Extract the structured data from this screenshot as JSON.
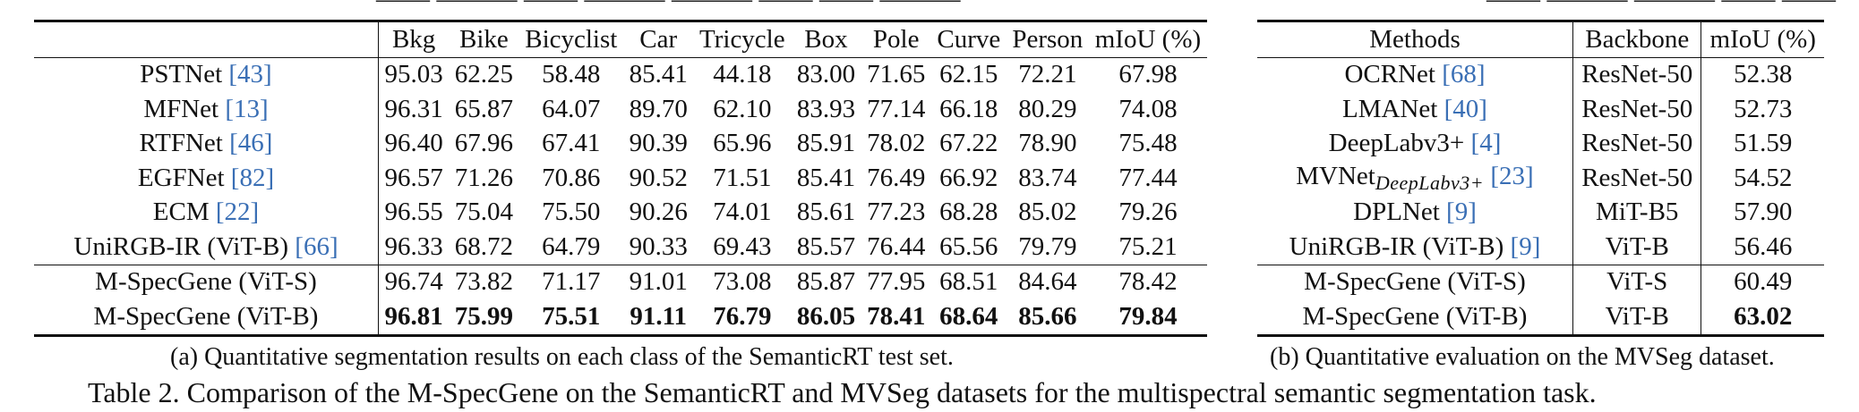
{
  "table_a": {
    "headers": [
      "",
      "Bkg",
      "Bike",
      "Bicyclist",
      "Car",
      "Tricycle",
      "Box",
      "Pole",
      "Curve",
      "Person",
      "mIoU (%)"
    ],
    "rows": [
      {
        "name": "PSTNet",
        "cite": "[43]",
        "vals": [
          "95.03",
          "62.25",
          "58.48",
          "85.41",
          "44.18",
          "83.00",
          "71.65",
          "62.15",
          "72.21",
          "67.98"
        ]
      },
      {
        "name": "MFNet",
        "cite": "[13]",
        "vals": [
          "96.31",
          "65.87",
          "64.07",
          "89.70",
          "62.10",
          "83.93",
          "77.14",
          "66.18",
          "80.29",
          "74.08"
        ]
      },
      {
        "name": "RTFNet",
        "cite": "[46]",
        "vals": [
          "96.40",
          "67.96",
          "67.41",
          "90.39",
          "65.96",
          "85.91",
          "78.02",
          "67.22",
          "78.90",
          "75.48"
        ]
      },
      {
        "name": "EGFNet",
        "cite": "[82]",
        "vals": [
          "96.57",
          "71.26",
          "70.86",
          "90.52",
          "71.51",
          "85.41",
          "76.49",
          "66.92",
          "83.74",
          "77.44"
        ]
      },
      {
        "name": "ECM",
        "cite": "[22]",
        "vals": [
          "96.55",
          "75.04",
          "75.50",
          "90.26",
          "74.01",
          "85.61",
          "77.23",
          "68.28",
          "85.02",
          "79.26"
        ]
      },
      {
        "name": "UniRGB-IR (ViT-B)",
        "cite": "[66]",
        "vals": [
          "96.33",
          "68.72",
          "64.79",
          "90.33",
          "69.43",
          "85.57",
          "76.44",
          "65.56",
          "79.79",
          "75.21"
        ]
      },
      {
        "name": "M-SpecGene (ViT-S)",
        "cite": "",
        "vals": [
          "96.74",
          "73.82",
          "71.17",
          "91.01",
          "73.08",
          "85.87",
          "77.95",
          "68.51",
          "84.64",
          "78.42"
        ]
      },
      {
        "name": "M-SpecGene (ViT-B)",
        "cite": "",
        "vals": [
          "96.81",
          "75.99",
          "75.51",
          "91.11",
          "76.79",
          "86.05",
          "78.41",
          "68.64",
          "85.66",
          "79.84"
        ]
      }
    ],
    "caption": "(a) Quantitative segmentation results on each class of the SemanticRT test set."
  },
  "table_b": {
    "headers": [
      "Methods",
      "Backbone",
      "mIoU (%)"
    ],
    "rows": [
      {
        "name": "OCRNet",
        "sub": "",
        "cite": "[68]",
        "backbone": "ResNet-50",
        "miou": "52.38"
      },
      {
        "name": "LMANet",
        "sub": "",
        "cite": "[40]",
        "backbone": "ResNet-50",
        "miou": "52.73"
      },
      {
        "name": "DeepLabv3+",
        "sub": "",
        "cite": "[4]",
        "backbone": "ResNet-50",
        "miou": "51.59"
      },
      {
        "name": "MVNet",
        "sub": "DeepLabv3+",
        "cite": "[23]",
        "backbone": "ResNet-50",
        "miou": "54.52"
      },
      {
        "name": "DPLNet",
        "sub": "",
        "cite": "[9]",
        "backbone": "MiT-B5",
        "miou": "57.90"
      },
      {
        "name": "UniRGB-IR (ViT-B)",
        "sub": "",
        "cite": "[9]",
        "backbone": "ViT-B",
        "miou": "56.46"
      },
      {
        "name": "M-SpecGene (ViT-S)",
        "sub": "",
        "cite": "",
        "backbone": "ViT-S",
        "miou": "60.49"
      },
      {
        "name": "M-SpecGene (ViT-B)",
        "sub": "",
        "cite": "",
        "backbone": "ViT-B",
        "miou": "63.02"
      }
    ],
    "caption": "(b) Quantitative evaluation on the MVSeg dataset."
  },
  "main_caption": "Table 2. Comparison of the M-SpecGene on the SemanticRT and MVSeg datasets for the multispectral semantic segmentation task."
}
